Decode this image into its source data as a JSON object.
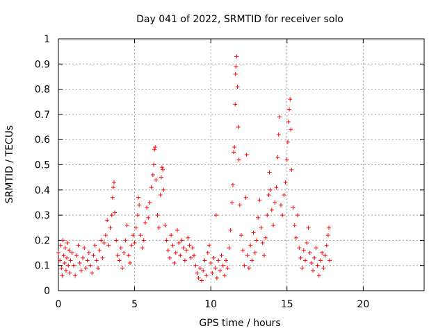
{
  "chart_data": {
    "type": "scatter",
    "title": "Day 041 of 2022, SRMTID for receiver solo",
    "xlabel": "GPS time / hours",
    "ylabel": "SRMTID / TECUs",
    "xlim": [
      0,
      24
    ],
    "ylim": [
      0,
      1
    ],
    "xticks": [
      0,
      5,
      10,
      15,
      20
    ],
    "xtick_labels": [
      "0",
      "5",
      "10",
      "15",
      "20"
    ],
    "yticks": [
      0,
      0.1,
      0.2,
      0.3,
      0.4,
      0.5,
      0.6,
      0.7,
      0.8,
      0.9,
      1
    ],
    "ytick_labels": [
      "0",
      "0.1",
      "0.2",
      "0.3",
      "0.4",
      "0.5",
      "0.6",
      "0.7",
      "0.8",
      "0.9",
      "1"
    ],
    "grid": true,
    "marker": "+",
    "color": "#ff0000",
    "series": [
      {
        "name": "SRMTID",
        "points": [
          [
            0.0,
            0.15
          ],
          [
            0.1,
            0.12
          ],
          [
            0.15,
            0.18
          ],
          [
            0.2,
            0.09
          ],
          [
            0.25,
            0.06
          ],
          [
            0.3,
            0.2
          ],
          [
            0.35,
            0.14
          ],
          [
            0.4,
            0.11
          ],
          [
            0.45,
            0.17
          ],
          [
            0.5,
            0.08
          ],
          [
            0.55,
            0.13
          ],
          [
            0.6,
            0.19
          ],
          [
            0.65,
            0.1
          ],
          [
            0.7,
            0.16
          ],
          [
            0.75,
            0.07
          ],
          [
            0.8,
            0.12
          ],
          [
            0.9,
            0.15
          ],
          [
            1.0,
            0.1
          ],
          [
            1.1,
            0.06
          ],
          [
            1.2,
            0.14
          ],
          [
            1.3,
            0.18
          ],
          [
            1.4,
            0.11
          ],
          [
            1.5,
            0.08
          ],
          [
            1.6,
            0.13
          ],
          [
            1.7,
            0.17
          ],
          [
            1.8,
            0.09
          ],
          [
            1.9,
            0.12
          ],
          [
            2.0,
            0.15
          ],
          [
            2.1,
            0.1
          ],
          [
            2.2,
            0.07
          ],
          [
            2.3,
            0.14
          ],
          [
            2.4,
            0.18
          ],
          [
            2.5,
            0.12
          ],
          [
            2.6,
            0.09
          ],
          [
            2.7,
            0.16
          ],
          [
            2.8,
            0.2
          ],
          [
            2.9,
            0.13
          ],
          [
            3.0,
            0.19
          ],
          [
            3.1,
            0.22
          ],
          [
            3.2,
            0.28
          ],
          [
            3.3,
            0.18
          ],
          [
            3.4,
            0.25
          ],
          [
            3.5,
            0.3
          ],
          [
            3.55,
            0.37
          ],
          [
            3.6,
            0.41
          ],
          [
            3.65,
            0.43
          ],
          [
            3.7,
            0.31
          ],
          [
            3.8,
            0.2
          ],
          [
            3.9,
            0.14
          ],
          [
            4.0,
            0.12
          ],
          [
            4.1,
            0.17
          ],
          [
            4.2,
            0.09
          ],
          [
            4.3,
            0.15
          ],
          [
            4.4,
            0.2
          ],
          [
            4.5,
            0.26
          ],
          [
            4.6,
            0.14
          ],
          [
            4.7,
            0.11
          ],
          [
            4.8,
            0.18
          ],
          [
            4.9,
            0.22
          ],
          [
            5.0,
            0.19
          ],
          [
            5.1,
            0.25
          ],
          [
            5.2,
            0.3
          ],
          [
            5.25,
            0.37
          ],
          [
            5.3,
            0.34
          ],
          [
            5.4,
            0.22
          ],
          [
            5.5,
            0.17
          ],
          [
            5.6,
            0.2
          ],
          [
            5.7,
            0.27
          ],
          [
            5.8,
            0.33
          ],
          [
            5.9,
            0.29
          ],
          [
            6.0,
            0.35
          ],
          [
            6.1,
            0.41
          ],
          [
            6.2,
            0.46
          ],
          [
            6.25,
            0.5
          ],
          [
            6.3,
            0.56
          ],
          [
            6.35,
            0.57
          ],
          [
            6.4,
            0.44
          ],
          [
            6.5,
            0.3
          ],
          [
            6.6,
            0.25
          ],
          [
            6.7,
            0.38
          ],
          [
            6.75,
            0.45
          ],
          [
            6.8,
            0.49
          ],
          [
            6.85,
            0.48
          ],
          [
            6.9,
            0.4
          ],
          [
            7.0,
            0.26
          ],
          [
            7.1,
            0.2
          ],
          [
            7.2,
            0.16
          ],
          [
            7.3,
            0.13
          ],
          [
            7.4,
            0.22
          ],
          [
            7.5,
            0.18
          ],
          [
            7.6,
            0.11
          ],
          [
            7.7,
            0.15
          ],
          [
            7.8,
            0.24
          ],
          [
            7.9,
            0.19
          ],
          [
            8.0,
            0.14
          ],
          [
            8.1,
            0.2
          ],
          [
            8.2,
            0.17
          ],
          [
            8.3,
            0.12
          ],
          [
            8.4,
            0.16
          ],
          [
            8.5,
            0.21
          ],
          [
            8.6,
            0.18
          ],
          [
            8.7,
            0.13
          ],
          [
            8.8,
            0.17
          ],
          [
            8.9,
            0.14
          ],
          [
            9.0,
            0.1
          ],
          [
            9.1,
            0.07
          ],
          [
            9.2,
            0.05
          ],
          [
            9.3,
            0.09
          ],
          [
            9.4,
            0.04
          ],
          [
            9.5,
            0.08
          ],
          [
            9.6,
            0.12
          ],
          [
            9.7,
            0.06
          ],
          [
            9.8,
            0.15
          ],
          [
            9.9,
            0.18
          ],
          [
            10.0,
            0.11
          ],
          [
            10.1,
            0.07
          ],
          [
            10.2,
            0.13
          ],
          [
            10.3,
            0.09
          ],
          [
            10.35,
            0.3
          ],
          [
            10.4,
            0.05
          ],
          [
            10.5,
            0.12
          ],
          [
            10.6,
            0.08
          ],
          [
            10.7,
            0.14
          ],
          [
            10.8,
            0.1
          ],
          [
            10.9,
            0.06
          ],
          [
            11.0,
            0.12
          ],
          [
            11.1,
            0.09
          ],
          [
            11.2,
            0.17
          ],
          [
            11.3,
            0.24
          ],
          [
            11.4,
            0.35
          ],
          [
            11.45,
            0.42
          ],
          [
            11.5,
            0.55
          ],
          [
            11.55,
            0.57
          ],
          [
            11.6,
            0.74
          ],
          [
            11.62,
            0.86
          ],
          [
            11.65,
            0.89
          ],
          [
            11.7,
            0.93
          ],
          [
            11.75,
            0.81
          ],
          [
            11.8,
            0.65
          ],
          [
            11.85,
            0.52
          ],
          [
            11.9,
            0.34
          ],
          [
            12.0,
            0.22
          ],
          [
            12.1,
            0.16
          ],
          [
            12.2,
            0.1
          ],
          [
            12.3,
            0.37
          ],
          [
            12.35,
            0.54
          ],
          [
            12.4,
            0.14
          ],
          [
            12.5,
            0.09
          ],
          [
            12.6,
            0.18
          ],
          [
            12.7,
            0.12
          ],
          [
            12.8,
            0.23
          ],
          [
            12.9,
            0.15
          ],
          [
            13.0,
            0.2
          ],
          [
            13.1,
            0.29
          ],
          [
            13.2,
            0.36
          ],
          [
            13.3,
            0.25
          ],
          [
            13.4,
            0.19
          ],
          [
            13.5,
            0.14
          ],
          [
            13.6,
            0.21
          ],
          [
            13.7,
            0.3
          ],
          [
            13.8,
            0.38
          ],
          [
            13.85,
            0.47
          ],
          [
            13.9,
            0.4
          ],
          [
            14.0,
            0.32
          ],
          [
            14.1,
            0.26
          ],
          [
            14.2,
            0.35
          ],
          [
            14.3,
            0.41
          ],
          [
            14.4,
            0.53
          ],
          [
            14.45,
            0.62
          ],
          [
            14.5,
            0.69
          ],
          [
            14.6,
            0.34
          ],
          [
            14.7,
            0.3
          ],
          [
            14.8,
            0.38
          ],
          [
            14.9,
            0.43
          ],
          [
            15.0,
            0.52
          ],
          [
            15.05,
            0.59
          ],
          [
            15.1,
            0.67
          ],
          [
            15.15,
            0.72
          ],
          [
            15.2,
            0.76
          ],
          [
            15.25,
            0.64
          ],
          [
            15.3,
            0.48
          ],
          [
            15.4,
            0.33
          ],
          [
            15.5,
            0.26
          ],
          [
            15.6,
            0.21
          ],
          [
            15.7,
            0.3
          ],
          [
            15.8,
            0.17
          ],
          [
            15.9,
            0.13
          ],
          [
            16.0,
            0.09
          ],
          [
            16.1,
            0.16
          ],
          [
            16.2,
            0.12
          ],
          [
            16.3,
            0.19
          ],
          [
            16.4,
            0.25
          ],
          [
            16.5,
            0.15
          ],
          [
            16.6,
            0.11
          ],
          [
            16.7,
            0.08
          ],
          [
            16.8,
            0.13
          ],
          [
            16.9,
            0.17
          ],
          [
            17.0,
            0.1
          ],
          [
            17.1,
            0.06
          ],
          [
            17.2,
            0.12
          ],
          [
            17.3,
            0.15
          ],
          [
            17.4,
            0.09
          ],
          [
            17.5,
            0.14
          ],
          [
            17.6,
            0.18
          ],
          [
            17.7,
            0.22
          ],
          [
            17.75,
            0.25
          ],
          [
            17.8,
            0.12
          ]
        ]
      }
    ]
  }
}
